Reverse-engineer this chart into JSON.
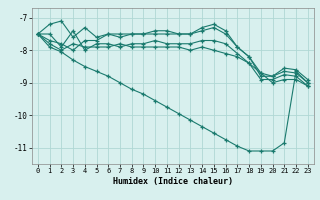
{
  "x": [
    0,
    1,
    2,
    3,
    4,
    5,
    6,
    7,
    8,
    9,
    10,
    11,
    12,
    13,
    14,
    15,
    16,
    17,
    18,
    19,
    20,
    21,
    22,
    23
  ],
  "line1": [
    -7.5,
    -7.2,
    -7.1,
    -7.6,
    -7.3,
    -7.6,
    -7.5,
    -7.5,
    -7.5,
    -7.5,
    -7.4,
    -7.4,
    -7.5,
    -7.5,
    -7.3,
    -7.2,
    -7.4,
    -7.9,
    -8.2,
    -8.8,
    -8.8,
    -8.65,
    -8.7,
    -9.0
  ],
  "line2": [
    -7.5,
    -7.7,
    -7.8,
    -8.0,
    -7.7,
    -7.7,
    -7.5,
    -7.6,
    -7.5,
    -7.5,
    -7.5,
    -7.5,
    -7.5,
    -7.5,
    -7.4,
    -7.3,
    -7.5,
    -7.9,
    -8.2,
    -8.7,
    -8.8,
    -8.55,
    -8.6,
    -8.9
  ],
  "line3": [
    -7.5,
    -7.5,
    -7.9,
    -7.4,
    -8.0,
    -7.8,
    -7.8,
    -7.9,
    -7.8,
    -7.8,
    -7.7,
    -7.8,
    -7.8,
    -7.8,
    -7.7,
    -7.7,
    -7.8,
    -8.1,
    -8.4,
    -8.9,
    -8.9,
    -8.75,
    -8.8,
    -9.1
  ],
  "line4": [
    -7.5,
    -7.8,
    -8.0,
    -7.8,
    -7.9,
    -7.9,
    -7.9,
    -7.8,
    -7.9,
    -7.9,
    -7.9,
    -7.9,
    -7.9,
    -8.0,
    -7.9,
    -8.0,
    -8.1,
    -8.2,
    -8.4,
    -8.7,
    -9.0,
    -8.9,
    -8.9,
    -9.1
  ],
  "line5": [
    -7.5,
    -7.9,
    -8.05,
    -8.3,
    -8.5,
    -8.65,
    -8.8,
    -9.0,
    -9.2,
    -9.35,
    -9.55,
    -9.75,
    -9.95,
    -10.15,
    -10.35,
    -10.55,
    -10.75,
    -10.95,
    -11.1,
    -11.1,
    -11.1,
    -10.85,
    -8.65,
    -9.0
  ],
  "bg_color": "#d8f0ee",
  "grid_color": "#b0d8d4",
  "line_color": "#1a7a6e",
  "xlabel": "Humidex (Indice chaleur)",
  "ylim": [
    -11.5,
    -6.7
  ],
  "xlim": [
    -0.5,
    23.5
  ],
  "yticks": [
    -7,
    -8,
    -9,
    -10,
    -11
  ],
  "xticks": [
    0,
    1,
    2,
    3,
    4,
    5,
    6,
    7,
    8,
    9,
    10,
    11,
    12,
    13,
    14,
    15,
    16,
    17,
    18,
    19,
    20,
    21,
    22,
    23
  ],
  "marker": "+",
  "markersize": 3.5,
  "linewidth": 0.8
}
